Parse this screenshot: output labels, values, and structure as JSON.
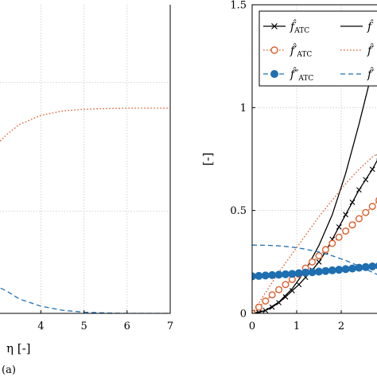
{
  "caption": "(a)",
  "chart_data": [
    {
      "type": "line",
      "panel": "left",
      "xlabel": "η [-]",
      "ylabel": "",
      "xlim": [
        0,
        7
      ],
      "xticks": [
        "4",
        "5",
        "6",
        "7"
      ],
      "grid": true,
      "series": [
        {
          "role": "f_prime",
          "style": "dotted",
          "color": "#d95f2b",
          "x": [
            2.9,
            3.2,
            3.5,
            4.0,
            4.5,
            5.0,
            5.5,
            6.0,
            7.0
          ],
          "y": [
            0.806,
            0.87,
            0.92,
            0.965,
            0.986,
            0.995,
            0.998,
            1.0,
            1.0
          ]
        },
        {
          "role": "f_doubleprime",
          "style": "dashed",
          "color": "#1f6fb0",
          "x": [
            2.9,
            3.2,
            3.5,
            4.0,
            4.5,
            5.0,
            5.5,
            6.0,
            7.0
          ],
          "y": [
            0.139,
            0.11,
            0.07,
            0.035,
            0.015,
            0.006,
            0.002,
            0.0,
            0.0
          ]
        }
      ]
    },
    {
      "type": "line",
      "panel": "right",
      "xlabel": "",
      "ylabel": "[-]",
      "xlim": [
        0,
        3
      ],
      "ylim": [
        0,
        1.5
      ],
      "xticks": [
        "0",
        "1",
        "2"
      ],
      "yticks": [
        "0",
        "0.5",
        "1",
        "1.5"
      ],
      "grid": true,
      "legend_position": "top-right",
      "legend": [
        {
          "base": "f̂",
          "sub": "ATC",
          "style": "solid-x",
          "color": "#000000"
        },
        {
          "base": "f̂",
          "sub": "",
          "style": "solid",
          "color": "#000000"
        },
        {
          "base": "f̂′",
          "sub": "ATC",
          "style": "dotted-o",
          "color": "#d95f2b"
        },
        {
          "base": "f̂′",
          "sub": "",
          "style": "dotted",
          "color": "#d95f2b"
        },
        {
          "base": "f̂″",
          "sub": "ATC",
          "style": "dashed-dot",
          "color": "#1f6fb0"
        },
        {
          "base": "f̂′",
          "sub": "",
          "style": "dashed",
          "color": "#1f6fb0"
        }
      ],
      "series": [
        {
          "role": "f_atc",
          "style": "solid-x",
          "color": "#000000",
          "x": [
            0,
            0.15,
            0.3,
            0.45,
            0.6,
            0.75,
            0.9,
            1.05,
            1.2,
            1.35,
            1.5,
            1.65,
            1.8,
            1.95,
            2.1,
            2.25,
            2.4,
            2.55,
            2.7,
            2.85,
            3.0
          ],
          "y": [
            0,
            0.004,
            0.014,
            0.03,
            0.052,
            0.08,
            0.11,
            0.14,
            0.175,
            0.21,
            0.25,
            0.3,
            0.36,
            0.42,
            0.48,
            0.54,
            0.6,
            0.65,
            0.7,
            0.76,
            0.8
          ]
        },
        {
          "role": "f",
          "style": "solid",
          "color": "#000000",
          "x": [
            0,
            0.3,
            0.6,
            0.9,
            1.2,
            1.5,
            1.8,
            2.1,
            2.4,
            2.7,
            3.0
          ],
          "y": [
            0,
            0.014,
            0.055,
            0.12,
            0.21,
            0.33,
            0.48,
            0.68,
            0.92,
            1.18,
            1.45
          ]
        },
        {
          "role": "f_prime_atc",
          "style": "dotted-o",
          "color": "#d95f2b",
          "x": [
            0,
            0.15,
            0.3,
            0.45,
            0.6,
            0.75,
            0.9,
            1.05,
            1.2,
            1.35,
            1.5,
            1.65,
            1.8,
            1.95,
            2.1,
            2.25,
            2.4,
            2.55,
            2.7,
            2.85,
            3.0
          ],
          "y": [
            0,
            0.03,
            0.06,
            0.09,
            0.115,
            0.14,
            0.165,
            0.19,
            0.22,
            0.25,
            0.28,
            0.31,
            0.34,
            0.37,
            0.4,
            0.43,
            0.46,
            0.49,
            0.52,
            0.55,
            0.58
          ]
        },
        {
          "role": "f_prime",
          "style": "dotted",
          "color": "#d95f2b",
          "x": [
            0,
            0.3,
            0.6,
            0.9,
            1.2,
            1.5,
            1.8,
            2.1,
            2.4,
            2.7,
            3.0
          ],
          "y": [
            0,
            0.1,
            0.2,
            0.29,
            0.38,
            0.47,
            0.55,
            0.63,
            0.7,
            0.76,
            0.8
          ]
        },
        {
          "role": "f_doubleprime_atc",
          "style": "dashed-dot",
          "color": "#1f6fb0",
          "x": [
            0,
            0.15,
            0.3,
            0.45,
            0.6,
            0.75,
            0.9,
            1.05,
            1.2,
            1.35,
            1.5,
            1.65,
            1.8,
            1.95,
            2.1,
            2.25,
            2.4,
            2.55,
            2.7,
            2.85,
            3.0
          ],
          "y": [
            0.18,
            0.182,
            0.184,
            0.186,
            0.188,
            0.19,
            0.192,
            0.195,
            0.198,
            0.2,
            0.203,
            0.206,
            0.209,
            0.212,
            0.215,
            0.218,
            0.222,
            0.225,
            0.228,
            0.231,
            0.234
          ]
        },
        {
          "role": "f_doubleprime",
          "style": "dashed",
          "color": "#1f6fb0",
          "x": [
            0,
            0.3,
            0.6,
            0.9,
            1.2,
            1.5,
            1.8,
            2.1,
            2.4,
            2.7,
            3.0
          ],
          "y": [
            0.332,
            0.331,
            0.328,
            0.322,
            0.312,
            0.298,
            0.28,
            0.257,
            0.23,
            0.2,
            0.17
          ]
        }
      ]
    }
  ]
}
